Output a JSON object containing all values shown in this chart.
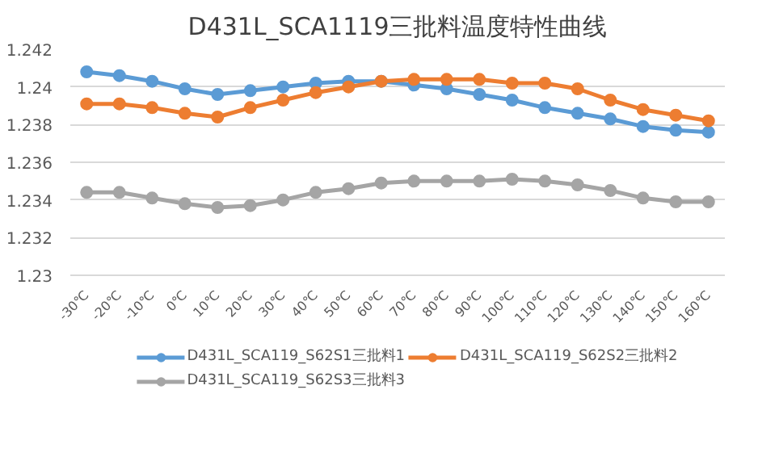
{
  "chart_data": {
    "type": "line",
    "title": "D431L_SCA1119三批料温度特性曲线",
    "categories": [
      "-30℃",
      "-20℃",
      "-10℃",
      "0℃",
      "10℃",
      "20℃",
      "30℃",
      "40℃",
      "50℃",
      "60℃",
      "70℃",
      "80℃",
      "90℃",
      "100℃",
      "110℃",
      "120℃",
      "130℃",
      "140℃",
      "150℃",
      "160℃"
    ],
    "ylim": [
      1.23,
      1.242
    ],
    "yticks": [
      {
        "value": 1.23,
        "label": "1.23"
      },
      {
        "value": 1.232,
        "label": "1.232"
      },
      {
        "value": 1.234,
        "label": "1.234"
      },
      {
        "value": 1.236,
        "label": "1.236"
      },
      {
        "value": 1.238,
        "label": "1.238"
      },
      {
        "value": 1.24,
        "label": "1.24"
      },
      {
        "value": 1.242,
        "label": "1.242"
      }
    ],
    "grid": "y",
    "legend": "bottom",
    "marker": "circle",
    "line_style": "solid",
    "series": [
      {
        "name": "D431L_SCA119_S62S1三批料1",
        "color": "#5b9bd5",
        "values": [
          1.2408,
          1.2406,
          1.2403,
          1.2399,
          1.2396,
          1.2398,
          1.24,
          1.2402,
          1.2403,
          1.2403,
          1.2401,
          1.2399,
          1.2396,
          1.2393,
          1.2389,
          1.2386,
          1.2383,
          1.2379,
          1.2377,
          1.2376
        ]
      },
      {
        "name": "D431L_SCA119_S62S2三批料2",
        "color": "#ed7d31",
        "values": [
          1.2391,
          1.2391,
          1.2389,
          1.2386,
          1.2384,
          1.2389,
          1.2393,
          1.2397,
          1.24,
          1.2403,
          1.2404,
          1.2404,
          1.2404,
          1.2402,
          1.2402,
          1.2399,
          1.2393,
          1.2388,
          1.2385,
          1.2382
        ]
      },
      {
        "name": "D431L_SCA119_S62S3三批料3",
        "color": "#a5a5a5",
        "values": [
          1.2344,
          1.2344,
          1.2341,
          1.2338,
          1.2336,
          1.2337,
          1.234,
          1.2344,
          1.2346,
          1.2349,
          1.235,
          1.235,
          1.235,
          1.2351,
          1.235,
          1.2348,
          1.2345,
          1.2341,
          1.2339,
          1.2339
        ]
      }
    ]
  }
}
